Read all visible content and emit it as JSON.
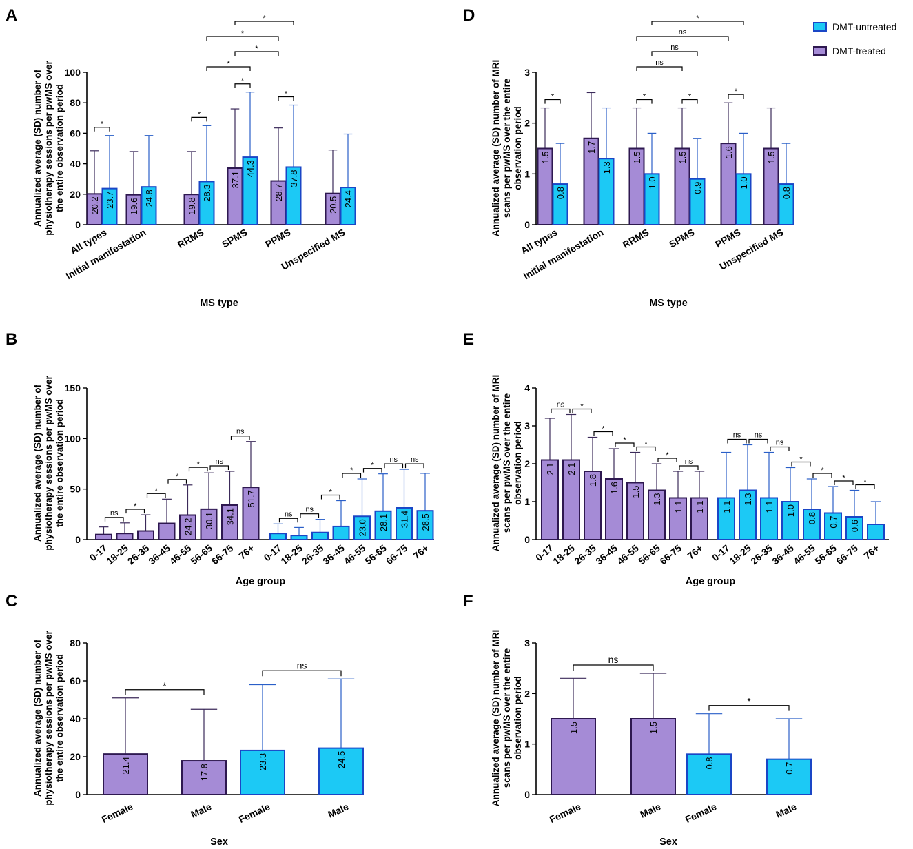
{
  "colors": {
    "treated_fill": "#a58bd6",
    "treated_edge": "#2e1850",
    "untreated_fill": "#1cc9f5",
    "untreated_edge": "#1a46c6",
    "treated_err": "#3b2a5a",
    "untreated_err": "#2a5fc8"
  },
  "legend": {
    "untreated": "DMT-untreated",
    "treated": "DMT-treated"
  },
  "chart_data": [
    {
      "panel": "A",
      "type": "bar",
      "title": "",
      "ylabel": "Annualized average (SD) number of physiotherapy sessions per pwMS over the entire observation period",
      "xlabel": "MS type",
      "ylim": [
        0,
        100
      ],
      "yticks": [
        0,
        20,
        40,
        60,
        80,
        100
      ],
      "categories": [
        "All types",
        "Initial manifestation",
        "RRMS",
        "SPMS",
        "PPMS",
        "Unspecified MS"
      ],
      "series": [
        {
          "name": "DMT-treated",
          "values": [
            20.2,
            19.6,
            19.8,
            37.1,
            28.7,
            20.5
          ],
          "sd_top": [
            48.5,
            48,
            48,
            76,
            63.5,
            49
          ]
        },
        {
          "name": "DMT-untreated",
          "values": [
            23.7,
            24.8,
            28.3,
            44.3,
            37.8,
            24.4
          ],
          "sd_top": [
            58.5,
            58.5,
            65,
            87,
            78.5,
            59.5
          ]
        }
      ],
      "annotations": [
        {
          "label": "*",
          "from": [
            0,
            0
          ],
          "to": [
            0,
            1
          ]
        },
        {
          "label": "*",
          "from": [
            2,
            0
          ],
          "to": [
            2,
            1
          ]
        },
        {
          "label": "*",
          "from": [
            3,
            0
          ],
          "to": [
            3,
            1
          ]
        },
        {
          "label": "*",
          "from": [
            4,
            0
          ],
          "to": [
            4,
            1
          ]
        },
        {
          "label": "*",
          "from": [
            2,
            1
          ],
          "to": [
            3,
            1
          ]
        },
        {
          "label": "*",
          "from": [
            3,
            0
          ],
          "to": [
            4,
            0
          ]
        },
        {
          "label": "*",
          "from": [
            2,
            1
          ],
          "to": [
            4,
            0
          ]
        },
        {
          "label": "*",
          "from": [
            3,
            0
          ],
          "to": [
            4,
            1
          ]
        }
      ]
    },
    {
      "panel": "D",
      "type": "bar",
      "title": "",
      "ylabel": "Annualized average (SD) number of MRI scans per pwMS over the entire observation period",
      "xlabel": "MS type",
      "ylim": [
        0,
        3
      ],
      "yticks": [
        0,
        1,
        2,
        3
      ],
      "categories": [
        "All types",
        "Initial manifestation",
        "RRMS",
        "SPMS",
        "PPMS",
        "Unspecified MS"
      ],
      "series": [
        {
          "name": "DMT-treated",
          "values": [
            1.5,
            1.7,
            1.5,
            1.5,
            1.6,
            1.5
          ],
          "sd_top": [
            2.3,
            2.6,
            2.3,
            2.3,
            2.4,
            2.3
          ]
        },
        {
          "name": "DMT-untreated",
          "values": [
            0.8,
            1.3,
            1.0,
            0.9,
            1.0,
            0.8
          ],
          "sd_top": [
            1.6,
            2.3,
            1.8,
            1.7,
            1.8,
            1.6
          ]
        }
      ],
      "annotations": [
        {
          "label": "*",
          "from": [
            0,
            0
          ],
          "to": [
            0,
            1
          ]
        },
        {
          "label": "*",
          "from": [
            2,
            0
          ],
          "to": [
            2,
            1
          ]
        },
        {
          "label": "*",
          "from": [
            3,
            0
          ],
          "to": [
            3,
            1
          ]
        },
        {
          "label": "*",
          "from": [
            4,
            0
          ],
          "to": [
            4,
            1
          ]
        },
        {
          "label": "ns",
          "from": [
            2,
            0
          ],
          "to": [
            3,
            0
          ]
        },
        {
          "label": "ns",
          "from": [
            2,
            1
          ],
          "to": [
            3,
            1
          ]
        },
        {
          "label": "ns",
          "from": [
            2,
            0
          ],
          "to": [
            4,
            0
          ]
        },
        {
          "label": "*",
          "from": [
            2,
            1
          ],
          "to": [
            4,
            1
          ]
        }
      ]
    },
    {
      "panel": "B",
      "type": "bar",
      "title": "",
      "ylabel": "Annualized average (SD) number of physiotherapy sessions per pwMS over the entire observation period",
      "xlabel": "Age group",
      "ylim": [
        0,
        150
      ],
      "yticks": [
        0,
        50,
        100,
        150
      ],
      "categories": [
        "0-17",
        "18-25",
        "26-35",
        "36-45",
        "46-55",
        "56-65",
        "66-75",
        "76+"
      ],
      "series": [
        {
          "name": "DMT-treated",
          "values": [
            5,
            6,
            8.5,
            16,
            24.2,
            30.1,
            34.1,
            51.7
          ],
          "labels": [
            "",
            "",
            "",
            "",
            "24.2",
            "30.1",
            "34.1",
            "51.7"
          ],
          "sd_top": [
            12.5,
            16.5,
            24.5,
            40,
            54,
            66,
            67.5,
            97
          ]
        },
        {
          "name": "DMT-untreated",
          "values": [
            6,
            4,
            7,
            13,
            23.0,
            28.1,
            31.4,
            28.5
          ],
          "labels": [
            "",
            "",
            "",
            "",
            "23.0",
            "28.1",
            "31.4",
            "28.5"
          ],
          "sd_top": [
            15.5,
            12,
            20,
            38.5,
            60,
            65,
            69.5,
            65.5
          ]
        }
      ],
      "annotations": [
        {
          "series": 0,
          "between": [
            0,
            1
          ],
          "label": "ns"
        },
        {
          "series": 0,
          "between": [
            1,
            2
          ],
          "label": "*"
        },
        {
          "series": 0,
          "between": [
            2,
            3
          ],
          "label": "*"
        },
        {
          "series": 0,
          "between": [
            3,
            4
          ],
          "label": "*"
        },
        {
          "series": 0,
          "between": [
            4,
            5
          ],
          "label": "*"
        },
        {
          "series": 0,
          "between": [
            5,
            6
          ],
          "label": "ns"
        },
        {
          "series": 0,
          "between": [
            6,
            7
          ],
          "label": "ns"
        },
        {
          "series": 1,
          "between": [
            0,
            1
          ],
          "label": "ns"
        },
        {
          "series": 1,
          "between": [
            1,
            2
          ],
          "label": "ns"
        },
        {
          "series": 1,
          "between": [
            2,
            3
          ],
          "label": "*"
        },
        {
          "series": 1,
          "between": [
            3,
            4
          ],
          "label": "*"
        },
        {
          "series": 1,
          "between": [
            4,
            5
          ],
          "label": "*"
        },
        {
          "series": 1,
          "between": [
            5,
            6
          ],
          "label": "ns"
        },
        {
          "series": 1,
          "between": [
            6,
            7
          ],
          "label": "ns"
        }
      ]
    },
    {
      "panel": "E",
      "type": "bar",
      "title": "",
      "ylabel": "Annualized average (SD) number of MRI scans per pwMS over the entire observation period",
      "xlabel": "Age group",
      "ylim": [
        0,
        4
      ],
      "yticks": [
        0,
        1,
        2,
        3,
        4
      ],
      "categories": [
        "0-17",
        "18-25",
        "26-35",
        "36-45",
        "46-55",
        "56-65",
        "66-75",
        "76+"
      ],
      "series": [
        {
          "name": "DMT-treated",
          "values": [
            2.1,
            2.1,
            1.8,
            1.6,
            1.5,
            1.3,
            1.1,
            1.1
          ],
          "labels": [
            "2.1",
            "2.1",
            "1.8",
            "1.6",
            "1.5",
            "1.3",
            "1.1",
            "1.1"
          ],
          "sd_top": [
            3.2,
            3.3,
            2.7,
            2.4,
            2.3,
            2.0,
            1.8,
            1.8
          ]
        },
        {
          "name": "DMT-untreated",
          "values": [
            1.1,
            1.3,
            1.1,
            1.0,
            0.8,
            0.7,
            0.6,
            0.4
          ],
          "labels": [
            "1.1",
            "1.3",
            "1.1",
            "1.0",
            "0.8",
            "0.7",
            "0.6",
            ""
          ],
          "sd_top": [
            2.3,
            2.5,
            2.3,
            1.9,
            1.6,
            1.4,
            1.3,
            1.0
          ]
        }
      ],
      "annotations": [
        {
          "series": 0,
          "between": [
            0,
            1
          ],
          "label": "ns"
        },
        {
          "series": 0,
          "between": [
            1,
            2
          ],
          "label": "*"
        },
        {
          "series": 0,
          "between": [
            2,
            3
          ],
          "label": "*"
        },
        {
          "series": 0,
          "between": [
            3,
            4
          ],
          "label": "*"
        },
        {
          "series": 0,
          "between": [
            4,
            5
          ],
          "label": "*"
        },
        {
          "series": 0,
          "between": [
            5,
            6
          ],
          "label": "*"
        },
        {
          "series": 0,
          "between": [
            6,
            7
          ],
          "label": "ns"
        },
        {
          "series": 1,
          "between": [
            0,
            1
          ],
          "label": "ns"
        },
        {
          "series": 1,
          "between": [
            1,
            2
          ],
          "label": "ns"
        },
        {
          "series": 1,
          "between": [
            2,
            3
          ],
          "label": "ns"
        },
        {
          "series": 1,
          "between": [
            3,
            4
          ],
          "label": "*"
        },
        {
          "series": 1,
          "between": [
            4,
            5
          ],
          "label": "*"
        },
        {
          "series": 1,
          "between": [
            5,
            6
          ],
          "label": "*"
        },
        {
          "series": 1,
          "between": [
            6,
            7
          ],
          "label": "*"
        }
      ]
    },
    {
      "panel": "C",
      "type": "bar",
      "title": "",
      "ylabel": "Annualized average (SD) number of physiotherapy sessions per pwMS over the entire observation period",
      "xlabel": "Sex",
      "ylim": [
        0,
        80
      ],
      "yticks": [
        0,
        20,
        40,
        60,
        80
      ],
      "categories": [
        "Female",
        "Male"
      ],
      "series": [
        {
          "name": "DMT-treated",
          "values": [
            21.4,
            17.8
          ],
          "sd_top": [
            51,
            45
          ]
        },
        {
          "name": "DMT-untreated",
          "values": [
            23.3,
            24.5
          ],
          "sd_top": [
            58,
            61
          ]
        }
      ],
      "annotations": [
        {
          "series": 0,
          "label": "*"
        },
        {
          "series": 1,
          "label": "ns"
        }
      ]
    },
    {
      "panel": "F",
      "type": "bar",
      "title": "",
      "ylabel": "Annualized average (SD) number of MRI scans per pwMS over the entire observation period",
      "xlabel": "Sex",
      "ylim": [
        0,
        3
      ],
      "yticks": [
        0,
        1,
        2,
        3
      ],
      "categories": [
        "Female",
        "Male"
      ],
      "series": [
        {
          "name": "DMT-treated",
          "values": [
            1.5,
            1.5
          ],
          "sd_top": [
            2.3,
            2.4
          ]
        },
        {
          "name": "DMT-untreated",
          "values": [
            0.8,
            0.7
          ],
          "sd_top": [
            1.6,
            1.5
          ]
        }
      ],
      "annotations": [
        {
          "series": 0,
          "label": "ns"
        },
        {
          "series": 1,
          "label": "*"
        }
      ]
    }
  ]
}
